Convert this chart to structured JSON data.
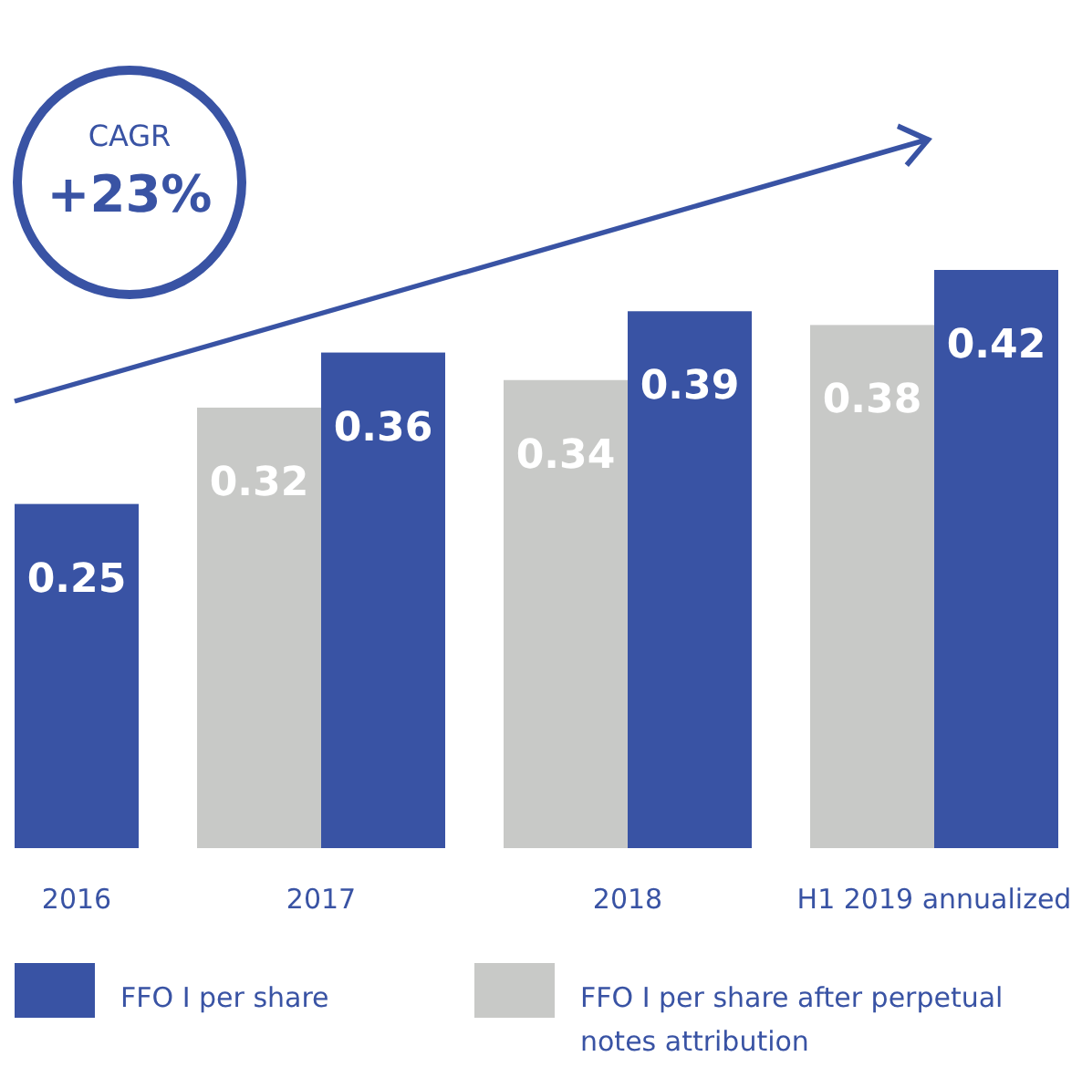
{
  "chart_data": {
    "type": "bar",
    "categories": [
      "2016",
      "2017",
      "2018",
      "H1 2019 annualized"
    ],
    "series": [
      {
        "name": "FFO I per share after perpetual notes attribution",
        "color": "#c8c9c7",
        "values": [
          null,
          0.32,
          0.34,
          0.38
        ]
      },
      {
        "name": "FFO I per share",
        "color": "#3953a4",
        "values": [
          0.25,
          0.36,
          0.39,
          0.42
        ]
      }
    ],
    "data_labels": true,
    "legend": "bottom",
    "annotations": [
      "CAGR",
      "+23%"
    ]
  }
}
